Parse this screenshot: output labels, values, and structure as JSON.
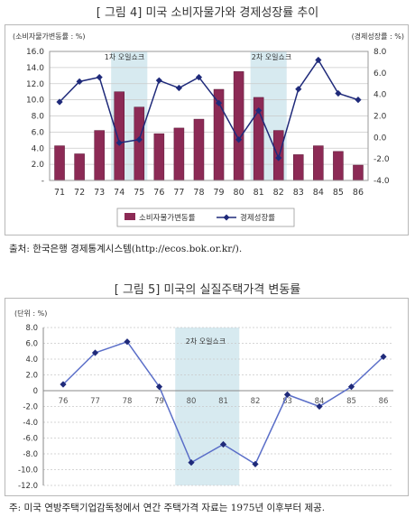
{
  "figure1": {
    "title": "[ 그림 4] 미국 소비자물가와 경제성장률 추이",
    "left_axis_label": "(소비자물가변동률 : %)",
    "right_axis_label": "(경제성장률 : %)",
    "source": "출처:  한국은행 경제통계시스템(http://ecos.bok.or.kr/).",
    "shock1_label": "1차 오일쇼크",
    "shock2_label": "2차 오일쇼크"
  },
  "figure2": {
    "title": "[ 그림 5] 미국의 실질주택가격 변동률",
    "unit_label": "(단위 : %)",
    "shock_label": "2차 오일쇼크",
    "note": "주: 미국 연방주택기업감독청에서 연간 주택가격 자료는 1975년 이후부터 제공."
  },
  "colors": {
    "bar": "#8c2a55",
    "line": "#1f2a7a",
    "shade": "#d7eaf0",
    "line2": "#5a6ec8"
  },
  "chart_data": [
    {
      "type": "bar",
      "categories": [
        "71",
        "72",
        "73",
        "74",
        "75",
        "76",
        "77",
        "78",
        "79",
        "80",
        "81",
        "82",
        "83",
        "84",
        "85",
        "86"
      ],
      "series": [
        {
          "name": "소비자물가변동률",
          "axis": "left",
          "values": [
            4.3,
            3.3,
            6.2,
            11.0,
            9.1,
            5.8,
            6.5,
            7.6,
            11.3,
            13.5,
            10.3,
            6.2,
            3.2,
            4.3,
            3.6,
            1.9
          ]
        },
        {
          "name": "경제성장률",
          "axis": "right",
          "type": "line",
          "values": [
            3.3,
            5.2,
            5.6,
            -0.5,
            -0.2,
            5.3,
            4.6,
            5.6,
            3.2,
            -0.2,
            2.5,
            -1.9,
            4.5,
            7.2,
            4.1,
            3.5
          ]
        }
      ],
      "ylim_left": [
        0,
        16
      ],
      "yticks_left": [
        "-",
        "2.0",
        "4.0",
        "6.0",
        "8.0",
        "10.0",
        "12.0",
        "14.0",
        "16.0"
      ],
      "ylim_right": [
        -4,
        8
      ],
      "yticks_right": [
        "-4.0",
        "-2.0",
        "0.0",
        "2.0",
        "4.0",
        "6.0",
        "8.0"
      ],
      "shaded_ranges": [
        [
          "74",
          "75"
        ],
        [
          "81",
          "82"
        ]
      ],
      "legend_position": "bottom",
      "grid": true
    },
    {
      "type": "line",
      "categories": [
        "76",
        "77",
        "78",
        "79",
        "80",
        "81",
        "82",
        "83",
        "84",
        "85",
        "86"
      ],
      "series": [
        {
          "values": [
            0.8,
            4.8,
            6.2,
            0.5,
            -9.1,
            -6.8,
            -9.3,
            -0.5,
            -2.0,
            0.5,
            4.3
          ]
        }
      ],
      "ylim": [
        -12,
        8
      ],
      "yticks": [
        "8.0",
        "6.0",
        "4.0",
        "2.0",
        "0",
        "-2.0",
        "-4.0",
        "-6.0",
        "-8.0",
        "-10.0",
        "-12.0"
      ],
      "shaded_ranges": [
        [
          "80",
          "81"
        ]
      ],
      "grid": true
    }
  ]
}
